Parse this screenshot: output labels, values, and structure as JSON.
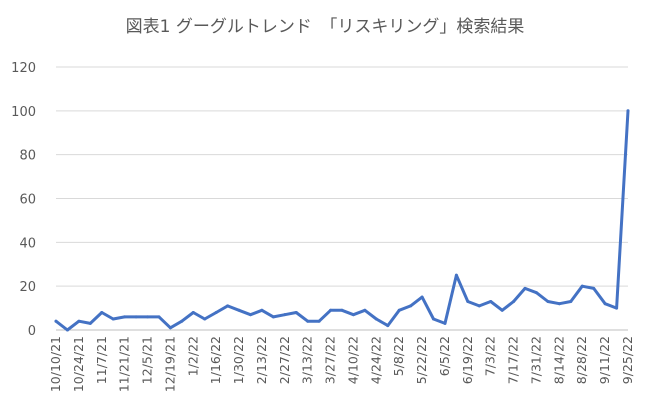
{
  "chart_data": {
    "type": "line",
    "title": "図表1 グーグルトレンド　「リスキリング」検索結果",
    "ylim": [
      0,
      120
    ],
    "yticks": [
      "0",
      "20",
      "40",
      "60",
      "80",
      "100",
      "120"
    ],
    "grid": true,
    "legend": "none",
    "colors": {
      "line": "#4472c4"
    },
    "x_labels": [
      "10/10/21",
      "10/24/21",
      "11/7/21",
      "11/21/21",
      "12/5/21",
      "12/19/21",
      "1/2/22",
      "1/16/22",
      "1/30/22",
      "2/13/22",
      "2/27/22",
      "3/13/22",
      "3/27/22",
      "4/10/22",
      "4/24/22",
      "5/8/22",
      "5/22/22",
      "6/5/22",
      "6/19/22",
      "7/3/22",
      "7/17/22",
      "7/31/22",
      "8/14/22",
      "8/28/22",
      "9/11/22",
      "9/25/22"
    ],
    "series": [
      {
        "values": [
          4,
          0,
          4,
          3,
          8,
          5,
          6,
          6,
          6,
          6,
          1,
          4,
          8,
          5,
          8,
          11,
          9,
          7,
          9,
          6,
          7,
          8,
          4,
          4,
          9,
          9,
          7,
          9,
          5,
          2,
          9,
          11,
          15,
          5,
          3,
          25,
          13,
          11,
          13,
          9,
          13,
          19,
          17,
          13,
          12,
          13,
          20,
          19,
          12,
          10,
          100
        ]
      }
    ]
  }
}
